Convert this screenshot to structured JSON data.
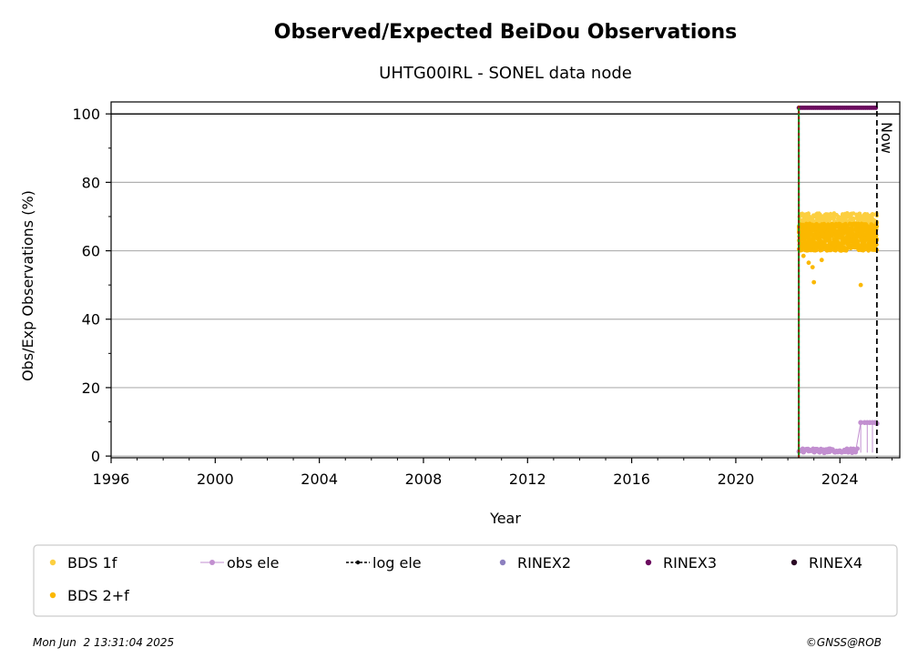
{
  "chart_data": {
    "type": "scatter",
    "title": "Observed/Expected BeiDou Observations",
    "subtitle": "UHTG00IRL - SONEL data node",
    "xlabel": "Year",
    "ylabel": "Obs/Exp Observations (%)",
    "xlim": [
      1996,
      2026.3
    ],
    "ylim": [
      -0.5,
      103.5
    ],
    "xticks": [
      "1996",
      "2000",
      "2004",
      "2008",
      "2012",
      "2016",
      "2020",
      "2024"
    ],
    "yticks": [
      "0",
      "20",
      "40",
      "60",
      "80",
      "100"
    ],
    "grid": "horizontal",
    "now_label": "Now",
    "reference_lines": {
      "hundred_percent": 100,
      "log_ele_start": 2022.42,
      "now": 2025.42
    },
    "series": [
      {
        "name": "BDS 1f",
        "color": "#fccf40",
        "band": [
          2022.42,
          2025.42
        ],
        "y_range": [
          62,
          71
        ]
      },
      {
        "name": "BDS 2+f",
        "color": "#fbb800",
        "band": [
          2022.42,
          2025.42
        ],
        "y_range": [
          60,
          68
        ],
        "outliers": [
          [
            2022.6,
            58.5
          ],
          [
            2022.8,
            56.5
          ],
          [
            2022.95,
            55.2
          ],
          [
            2023.0,
            50.8
          ],
          [
            2023.3,
            57.3
          ],
          [
            2024.8,
            50.0
          ],
          [
            2025.1,
            61.0
          ]
        ]
      },
      {
        "name": "obs ele",
        "color": "#c28fd0",
        "points": [
          [
            2022.45,
            1.5
          ],
          [
            2022.6,
            1.2
          ],
          [
            2022.8,
            1.5
          ],
          [
            2023.0,
            1.3
          ],
          [
            2023.2,
            1.4
          ],
          [
            2023.4,
            1.0
          ],
          [
            2023.6,
            1.3
          ],
          [
            2023.8,
            1.2
          ],
          [
            2024.0,
            1.5
          ],
          [
            2024.2,
            1.3
          ],
          [
            2024.4,
            1.4
          ],
          [
            2024.6,
            1.2
          ],
          [
            2024.8,
            9.8
          ],
          [
            2024.95,
            9.8
          ],
          [
            2025.05,
            9.8
          ],
          [
            2025.15,
            9.8
          ],
          [
            2025.25,
            9.8
          ],
          [
            2025.35,
            9.8
          ],
          [
            2025.42,
            9.5
          ]
        ]
      },
      {
        "name": "log ele",
        "color": "#000000"
      },
      {
        "name": "RINEX2",
        "color": "#8c7fbf"
      },
      {
        "name": "RINEX3",
        "color": "#6b0a5e",
        "segment": [
          2022.42,
          2025.42
        ],
        "y": 101.8
      },
      {
        "name": "RINEX4",
        "color": "#2a0a24"
      }
    ]
  },
  "footer": {
    "timestamp": "Mon Jun  2 13:31:04 2025",
    "credit": "©GNSS@ROB"
  }
}
